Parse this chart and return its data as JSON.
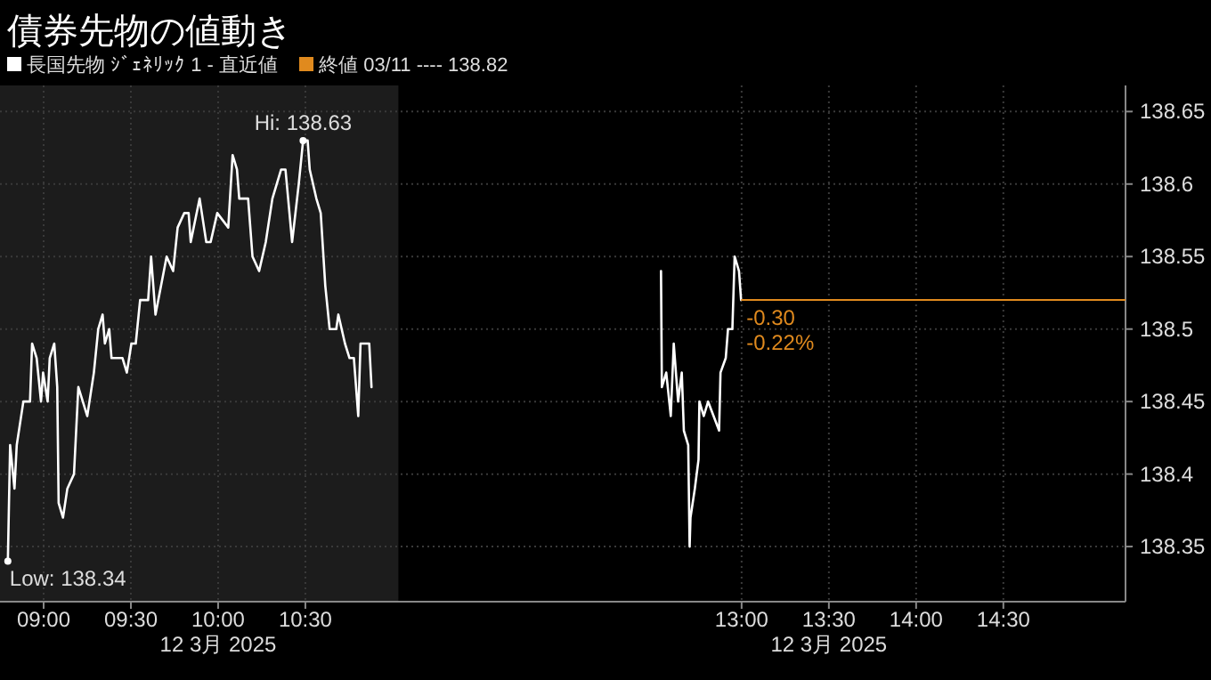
{
  "chart_data": {
    "type": "line",
    "title": "債券先物の値動き",
    "series": [
      {
        "name": "長国先物 ｼﾞｪﾈﾘｯｸ 1 - 直近値",
        "color": "#ffffff",
        "x": [
          8.795,
          8.808,
          8.833,
          8.846,
          8.884,
          8.922,
          8.934,
          8.96,
          8.985,
          8.997,
          9.023,
          9.035,
          9.061,
          9.078,
          9.086,
          9.111,
          9.136,
          9.174,
          9.199,
          9.25,
          9.288,
          9.313,
          9.338,
          9.351,
          9.376,
          9.389,
          9.452,
          9.477,
          9.503,
          9.528,
          9.553,
          9.599,
          9.616,
          9.641,
          9.705,
          9.742,
          9.768,
          9.806,
          9.831,
          9.843,
          9.894,
          9.932,
          9.957,
          9.995,
          10.058,
          10.083,
          10.108,
          10.121,
          10.172,
          10.197,
          10.235,
          10.273,
          10.311,
          10.361,
          10.386,
          10.424,
          10.462,
          10.487,
          10.513,
          10.525,
          10.563,
          10.588,
          10.614,
          10.639,
          10.677,
          10.689,
          10.727,
          10.753,
          10.778,
          10.803,
          10.816,
          10.866,
          10.879
        ],
        "values": [
          138.34,
          138.42,
          138.39,
          138.42,
          138.45,
          138.45,
          138.49,
          138.48,
          138.45,
          138.47,
          138.45,
          138.48,
          138.49,
          138.46,
          138.38,
          138.37,
          138.39,
          138.4,
          138.46,
          138.44,
          138.47,
          138.5,
          138.51,
          138.49,
          138.5,
          138.48,
          138.48,
          138.47,
          138.49,
          138.49,
          138.52,
          138.52,
          138.55,
          138.51,
          138.55,
          138.54,
          138.57,
          138.58,
          138.58,
          138.56,
          138.59,
          138.56,
          138.56,
          138.58,
          138.57,
          138.62,
          138.61,
          138.59,
          138.59,
          138.55,
          138.54,
          138.56,
          138.59,
          138.61,
          138.61,
          138.56,
          138.6,
          138.63,
          138.63,
          138.61,
          138.59,
          138.58,
          138.53,
          138.5,
          138.5,
          138.51,
          138.49,
          138.48,
          138.48,
          138.44,
          138.49,
          138.49,
          138.46
        ]
      },
      {
        "color": "#ffffff",
        "x": [
          12.538,
          12.543,
          12.568,
          12.594,
          12.611,
          12.636,
          12.657,
          12.669,
          12.694,
          12.702,
          12.707,
          12.732,
          12.753,
          12.758,
          12.783,
          12.808,
          12.871,
          12.879,
          12.909,
          12.922,
          12.947,
          12.96,
          12.985,
          12.997
        ],
        "values": [
          138.54,
          138.46,
          138.47,
          138.44,
          138.49,
          138.45,
          138.47,
          138.43,
          138.42,
          138.35,
          138.37,
          138.39,
          138.41,
          138.45,
          138.44,
          138.45,
          138.43,
          138.47,
          138.48,
          138.5,
          138.5,
          138.55,
          138.54,
          138.52
        ]
      }
    ],
    "xlim": [
      8.75,
      15.2
    ],
    "ylim": [
      138.312,
      138.668
    ],
    "xticks": [
      {
        "value": 9,
        "label": "09:00"
      },
      {
        "value": 9.5,
        "label": "09:30"
      },
      {
        "value": 10,
        "label": "10:00\n12 3月 2025"
      },
      {
        "value": 10.5,
        "label": "10:30"
      },
      {
        "value": 13,
        "label": "13:00"
      },
      {
        "value": 13.5,
        "label": "13:30\n12 3月 2025"
      },
      {
        "value": 14,
        "label": "14:00"
      },
      {
        "value": 14.5,
        "label": "14:30"
      }
    ],
    "yticks": [
      138.35,
      138.4,
      138.45,
      138.5,
      138.55,
      138.6,
      138.65
    ],
    "grid": true,
    "legend": "top left",
    "bands": [
      {
        "axis": "x",
        "from": 8.75,
        "to": 11.033,
        "color": "#1c1c1c"
      }
    ],
    "ref_lines": [
      {
        "axis": "y",
        "value": 138.52,
        "color": "#e08a1e"
      }
    ],
    "annotations": [
      {
        "text": "Hi: 138.63",
        "x": 10.487,
        "y": 138.63
      },
      {
        "text": "Low: 138.34",
        "x": 8.795,
        "y": 138.34
      },
      "終値 03/11 ---- 138.82",
      "-0.30",
      "-0.22%"
    ]
  }
}
